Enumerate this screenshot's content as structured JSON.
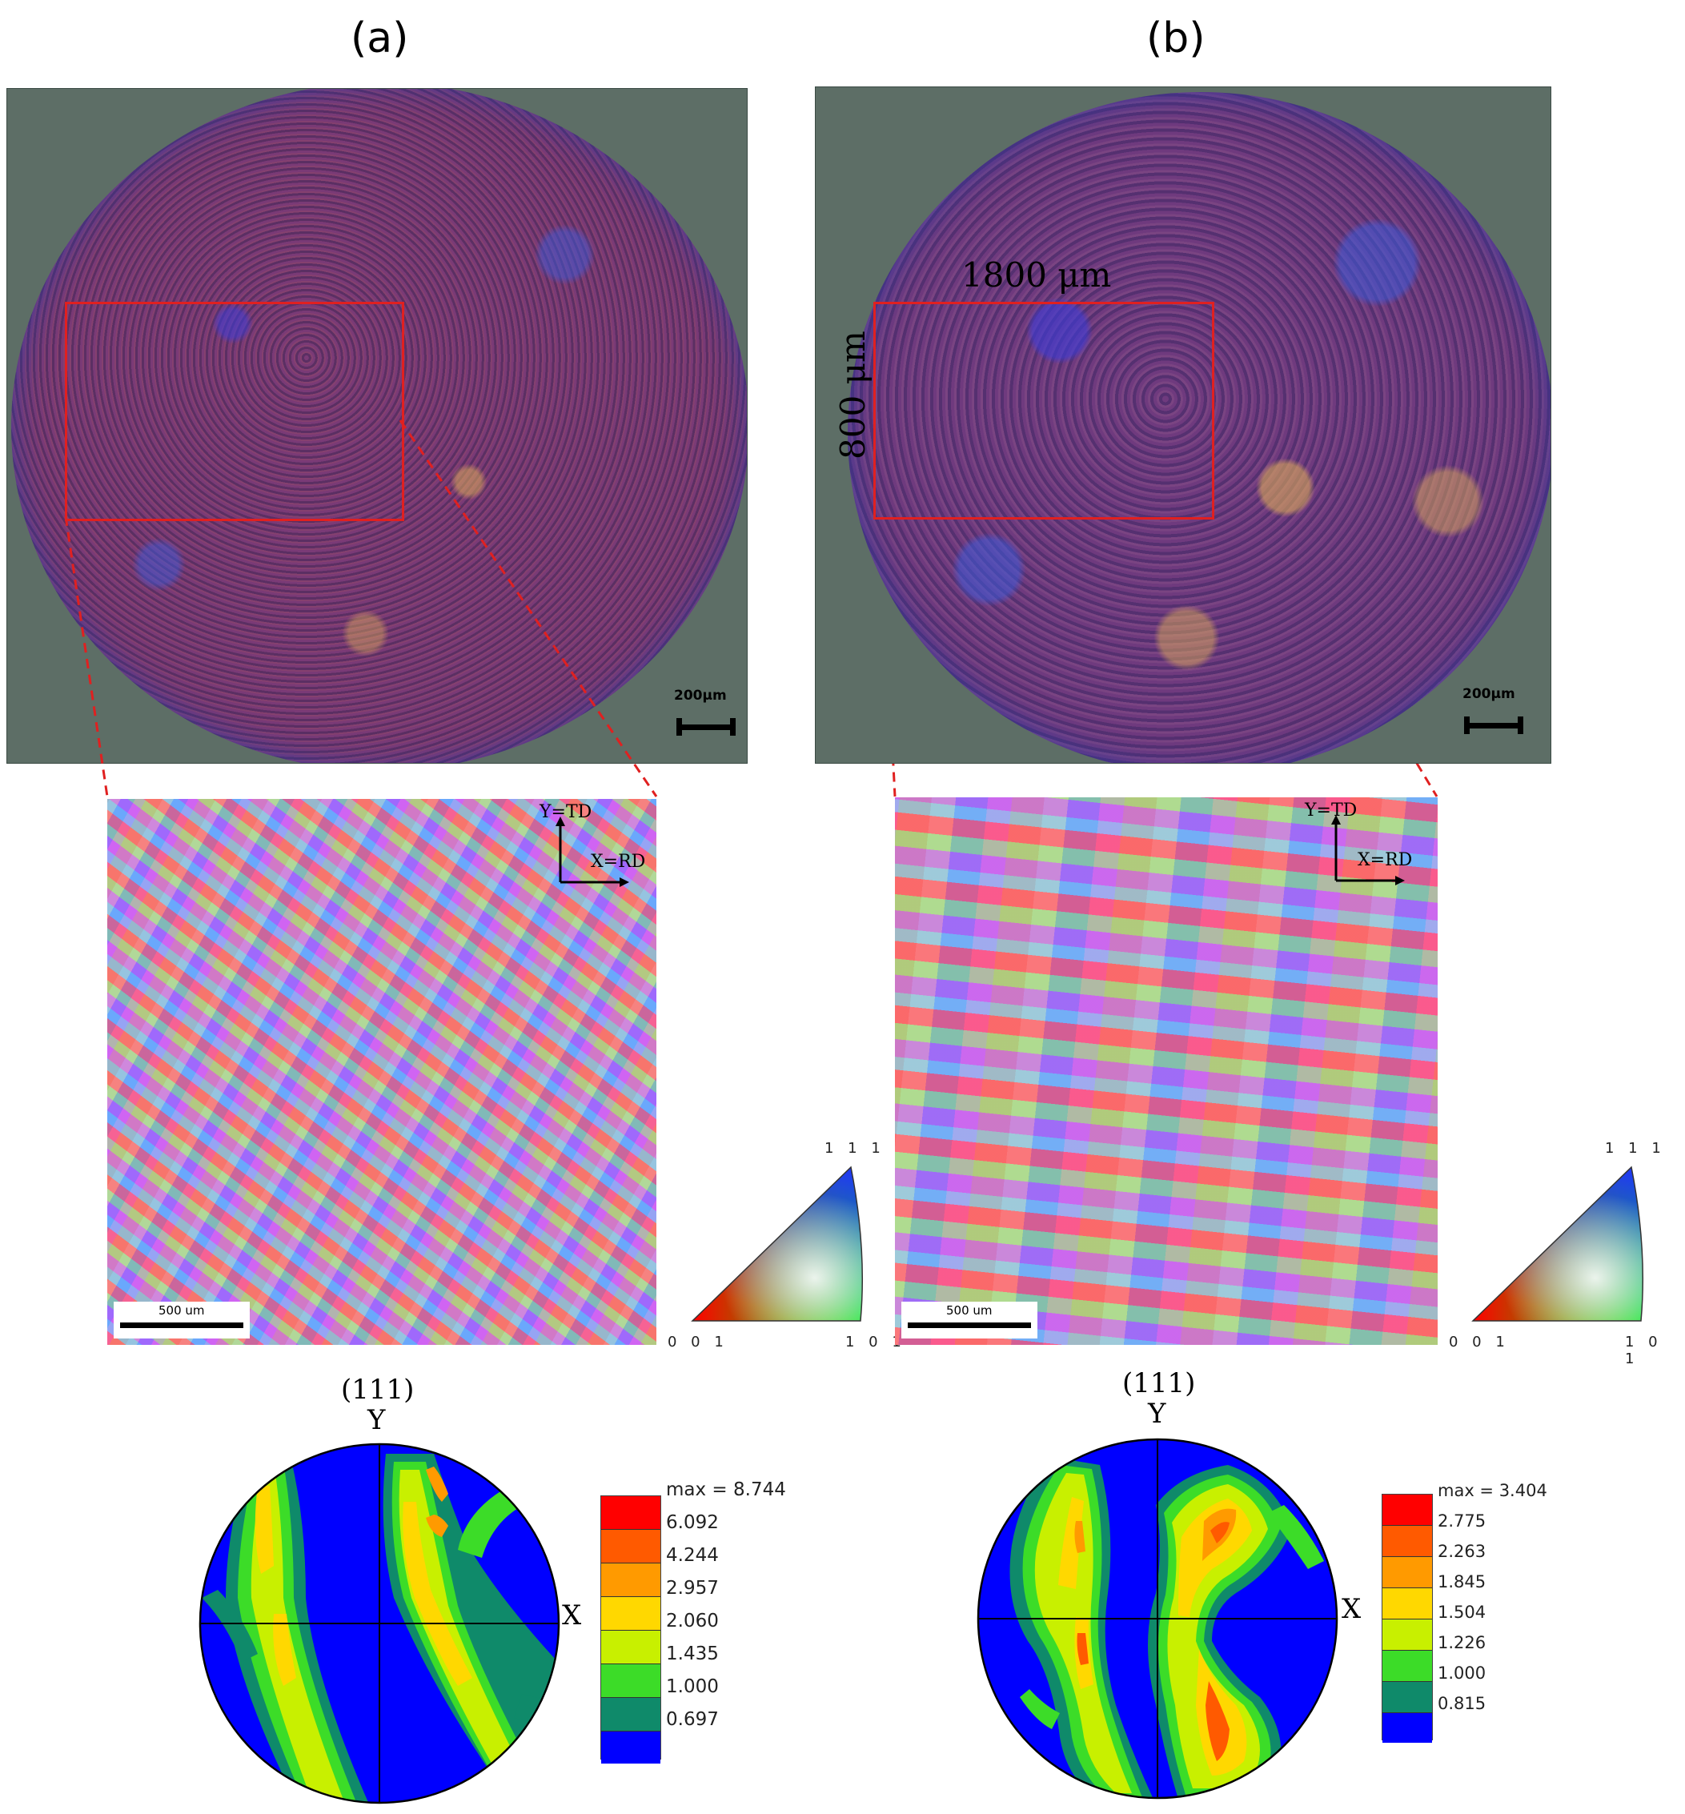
{
  "panels": [
    {
      "label": "(a)",
      "scale_bar_top": "200μm",
      "scale_bar_ebsd": "500 um",
      "axis_y": "Y=TD",
      "axis_x": "X=RD",
      "ipf_labels": {
        "top": "1 1 1",
        "bottom_left": "0 0 1",
        "bottom_right": "1 0 1"
      },
      "pole_figure": {
        "title": "(111)",
        "axis_y": "Y",
        "axis_x": "X",
        "legend": [
          "max = 8.744",
          "6.092",
          "4.244",
          "2.957",
          "2.060",
          "1.435",
          "1.000",
          "0.697"
        ]
      }
    },
    {
      "label": "(b)",
      "dim_width": "1800 μm",
      "dim_height": "800 μm",
      "scale_bar_top": "200μm",
      "scale_bar_ebsd": "500 um",
      "axis_y": "Y=TD",
      "axis_x": "X=RD",
      "ipf_labels": {
        "top": "1 1 1",
        "bottom_left": "0 0 1",
        "bottom_right": "1 0 1"
      },
      "pole_figure": {
        "title": "(111)",
        "axis_y": "Y",
        "axis_x": "X",
        "legend": [
          "max = 3.404",
          "2.775",
          "2.263",
          "1.845",
          "1.504",
          "1.226",
          "1.000",
          "0.815"
        ]
      }
    }
  ],
  "colors": {
    "legend_scale": [
      "#ff0000",
      "#ff5a00",
      "#ff9a00",
      "#ffd800",
      "#c8f000",
      "#3cdc28",
      "#0f8a6a",
      "#0000ff"
    ],
    "roi_box": "#e02020"
  }
}
